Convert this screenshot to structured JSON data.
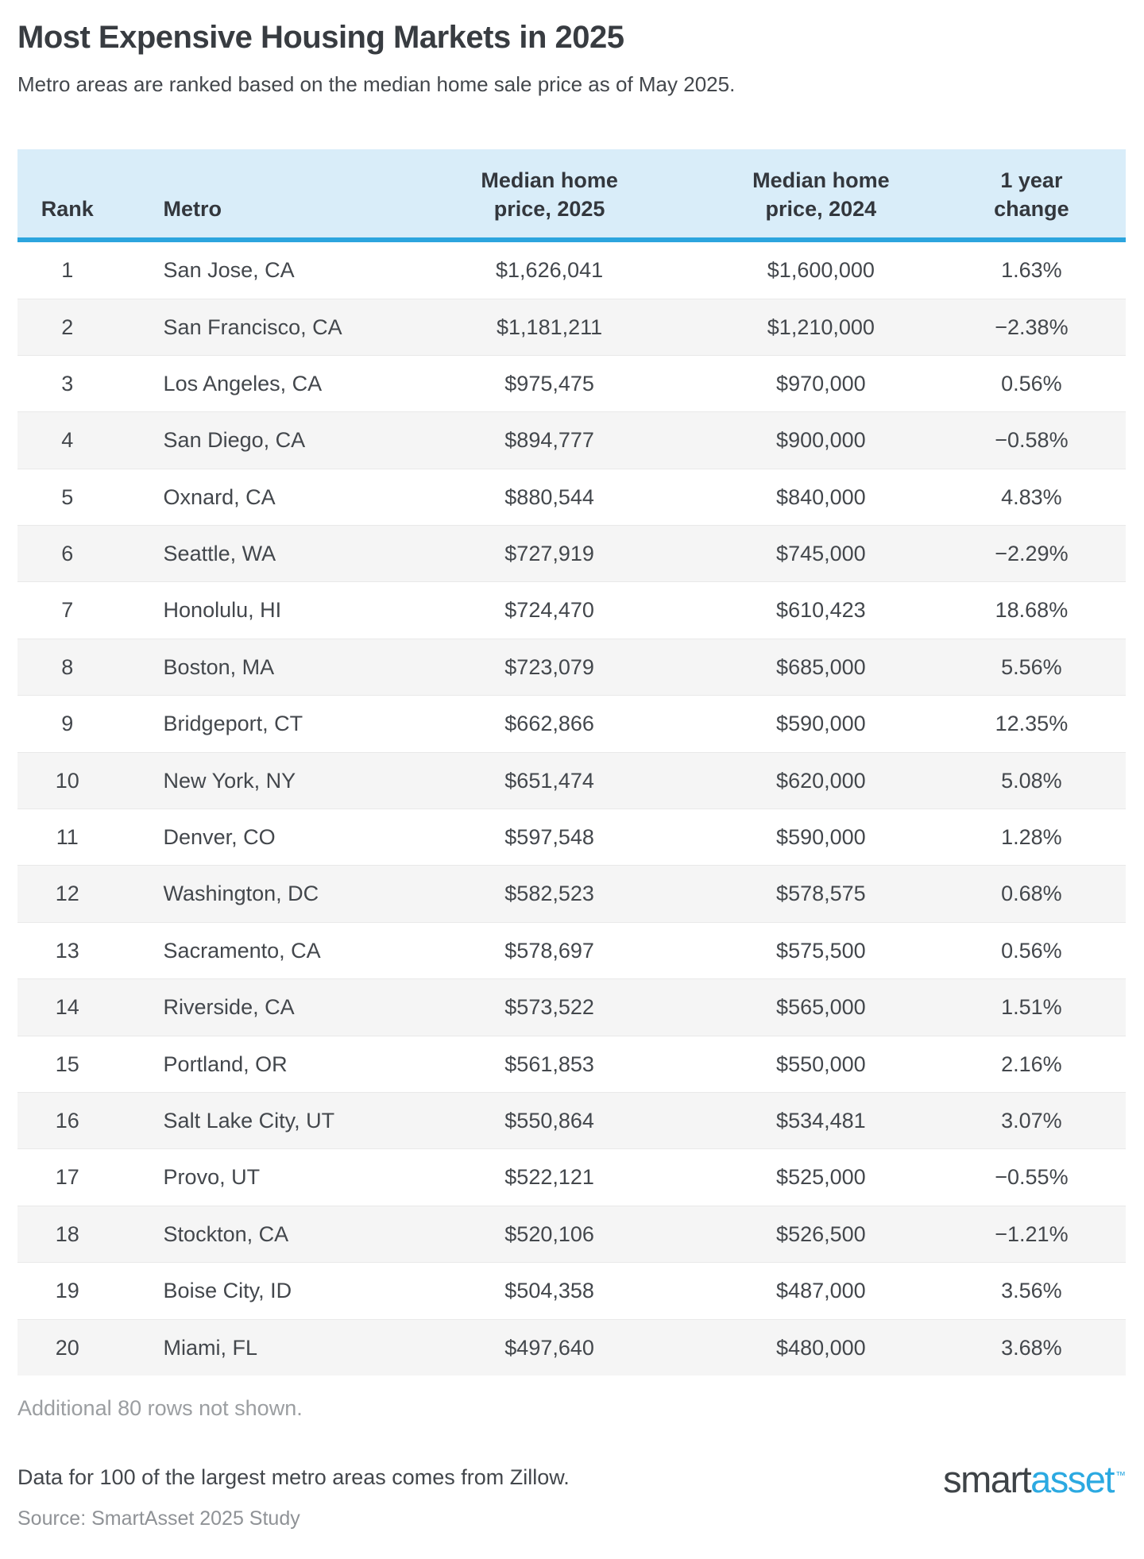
{
  "page": {
    "title": "Most Expensive Housing Markets in 2025",
    "subtitle": "Metro areas are ranked based on the median home sale price as of May 2025."
  },
  "table": {
    "columns": [
      {
        "label": "Rank"
      },
      {
        "label": "Metro"
      },
      {
        "line1": "Median home",
        "line2": "price, 2025"
      },
      {
        "line1": "Median home",
        "line2": "price, 2024"
      },
      {
        "line1": "1 year",
        "line2": "change"
      }
    ],
    "rows": [
      {
        "rank": "1",
        "metro": "San Jose, CA",
        "price_2025": "$1,626,041",
        "price_2024": "$1,600,000",
        "change": "1.63%"
      },
      {
        "rank": "2",
        "metro": "San Francisco, CA",
        "price_2025": "$1,181,211",
        "price_2024": "$1,210,000",
        "change": "−2.38%"
      },
      {
        "rank": "3",
        "metro": "Los Angeles, CA",
        "price_2025": "$975,475",
        "price_2024": "$970,000",
        "change": "0.56%"
      },
      {
        "rank": "4",
        "metro": "San Diego, CA",
        "price_2025": "$894,777",
        "price_2024": "$900,000",
        "change": "−0.58%"
      },
      {
        "rank": "5",
        "metro": "Oxnard, CA",
        "price_2025": "$880,544",
        "price_2024": "$840,000",
        "change": "4.83%"
      },
      {
        "rank": "6",
        "metro": "Seattle, WA",
        "price_2025": "$727,919",
        "price_2024": "$745,000",
        "change": "−2.29%"
      },
      {
        "rank": "7",
        "metro": "Honolulu, HI",
        "price_2025": "$724,470",
        "price_2024": "$610,423",
        "change": "18.68%"
      },
      {
        "rank": "8",
        "metro": "Boston, MA",
        "price_2025": "$723,079",
        "price_2024": "$685,000",
        "change": "5.56%"
      },
      {
        "rank": "9",
        "metro": "Bridgeport, CT",
        "price_2025": "$662,866",
        "price_2024": "$590,000",
        "change": "12.35%"
      },
      {
        "rank": "10",
        "metro": "New York, NY",
        "price_2025": "$651,474",
        "price_2024": "$620,000",
        "change": "5.08%"
      },
      {
        "rank": "11",
        "metro": "Denver, CO",
        "price_2025": "$597,548",
        "price_2024": "$590,000",
        "change": "1.28%"
      },
      {
        "rank": "12",
        "metro": "Washington, DC",
        "price_2025": "$582,523",
        "price_2024": "$578,575",
        "change": "0.68%"
      },
      {
        "rank": "13",
        "metro": "Sacramento, CA",
        "price_2025": "$578,697",
        "price_2024": "$575,500",
        "change": "0.56%"
      },
      {
        "rank": "14",
        "metro": "Riverside, CA",
        "price_2025": "$573,522",
        "price_2024": "$565,000",
        "change": "1.51%"
      },
      {
        "rank": "15",
        "metro": "Portland, OR",
        "price_2025": "$561,853",
        "price_2024": "$550,000",
        "change": "2.16%"
      },
      {
        "rank": "16",
        "metro": "Salt Lake City, UT",
        "price_2025": "$550,864",
        "price_2024": "$534,481",
        "change": "3.07%"
      },
      {
        "rank": "17",
        "metro": "Provo, UT",
        "price_2025": "$522,121",
        "price_2024": "$525,000",
        "change": "−0.55%"
      },
      {
        "rank": "18",
        "metro": "Stockton, CA",
        "price_2025": "$520,106",
        "price_2024": "$526,500",
        "change": "−1.21%"
      },
      {
        "rank": "19",
        "metro": "Boise City, ID",
        "price_2025": "$504,358",
        "price_2024": "$487,000",
        "change": "3.56%"
      },
      {
        "rank": "20",
        "metro": "Miami, FL",
        "price_2025": "$497,640",
        "price_2024": "$480,000",
        "change": "3.68%"
      }
    ]
  },
  "footer": {
    "additional_note": "Additional 80 rows not shown.",
    "data_note": "Data for 100 of the largest metro areas comes from Zillow.",
    "source": "Source: SmartAsset 2025 Study",
    "logo": {
      "part1": "smart",
      "part2": "asset",
      "tm": "™"
    }
  },
  "colors": {
    "header_bg": "#d9edf9",
    "accent": "#2ca5de",
    "stripe": "#f5f5f5",
    "row_border": "#e9e9e9",
    "text_dark": "#383c41",
    "text_body": "#43474c",
    "muted": "#9b9ea1",
    "logo_blue": "#2ba9e1"
  },
  "chart_data": {
    "type": "table",
    "title": "Most Expensive Housing Markets in 2025",
    "subtitle": "Metro areas are ranked based on the median home sale price as of May 2025.",
    "columns": [
      "Rank",
      "Metro",
      "Median home price, 2025",
      "Median home price, 2024",
      "1 year change (%)"
    ],
    "rows": [
      [
        1,
        "San Jose, CA",
        1626041,
        1600000,
        1.63
      ],
      [
        2,
        "San Francisco, CA",
        1181211,
        1210000,
        -2.38
      ],
      [
        3,
        "Los Angeles, CA",
        975475,
        970000,
        0.56
      ],
      [
        4,
        "San Diego, CA",
        894777,
        900000,
        -0.58
      ],
      [
        5,
        "Oxnard, CA",
        880544,
        840000,
        4.83
      ],
      [
        6,
        "Seattle, WA",
        727919,
        745000,
        -2.29
      ],
      [
        7,
        "Honolulu, HI",
        724470,
        610423,
        18.68
      ],
      [
        8,
        "Boston, MA",
        723079,
        685000,
        5.56
      ],
      [
        9,
        "Bridgeport, CT",
        662866,
        590000,
        12.35
      ],
      [
        10,
        "New York, NY",
        651474,
        620000,
        5.08
      ],
      [
        11,
        "Denver, CO",
        597548,
        590000,
        1.28
      ],
      [
        12,
        "Washington, DC",
        582523,
        578575,
        0.68
      ],
      [
        13,
        "Sacramento, CA",
        578697,
        575500,
        0.56
      ],
      [
        14,
        "Riverside, CA",
        573522,
        565000,
        1.51
      ],
      [
        15,
        "Portland, OR",
        561853,
        550000,
        2.16
      ],
      [
        16,
        "Salt Lake City, UT",
        550864,
        534481,
        3.07
      ],
      [
        17,
        "Provo, UT",
        522121,
        525000,
        -0.55
      ],
      [
        18,
        "Stockton, CA",
        520106,
        526500,
        -1.21
      ],
      [
        19,
        "Boise City, ID",
        504358,
        487000,
        3.56
      ],
      [
        20,
        "Miami, FL",
        497640,
        480000,
        3.68
      ]
    ],
    "notes": [
      "Additional 80 rows not shown.",
      "Data for 100 of the largest metro areas comes from Zillow.",
      "Source: SmartAsset 2025 Study"
    ]
  }
}
